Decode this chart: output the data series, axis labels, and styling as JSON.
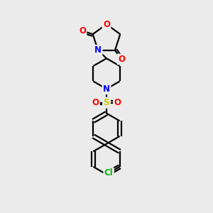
{
  "bg_color": "#ebebeb",
  "atom_colors": {
    "O": "#ff0000",
    "N": "#0000ff",
    "S": "#cccc00",
    "Cl": "#00bb00",
    "C": "#000000"
  },
  "bond_color": "#000000",
  "bond_width": 1.6,
  "font_size_atom": 8.5,
  "figsize": [
    3.0,
    3.0
  ],
  "dpi": 100
}
